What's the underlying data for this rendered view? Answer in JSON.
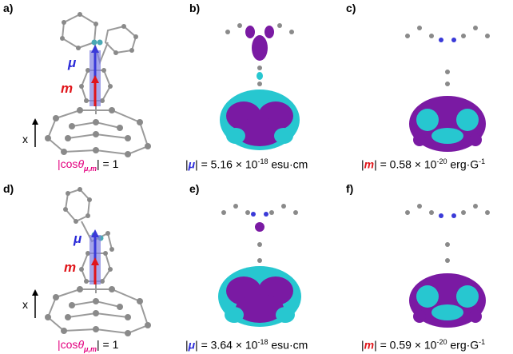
{
  "panels": [
    {
      "label": "a)"
    },
    {
      "label": "b)"
    },
    {
      "label": "c)"
    },
    {
      "label": "d)"
    },
    {
      "label": "e)"
    },
    {
      "label": "f)"
    }
  ],
  "vectors": {
    "mu": "μ",
    "m": "m"
  },
  "axis": {
    "label": "x"
  },
  "captions": {
    "row1": {
      "cos_prefix": "|cos",
      "cos_theta": "θ",
      "cos_sub": "μ,m",
      "cos_value": "| = 1",
      "mu_open": "|",
      "mu_symbol": "μ",
      "mu_value": "| = 5.16 × 10",
      "mu_exp": "-18",
      "mu_unit": " esu·cm",
      "m_open": "|",
      "m_symbol": "m",
      "m_value": "| = 0.58 × 10",
      "m_exp": "-20",
      "m_unit": " erg·G",
      "m_unit_exp": "-1"
    },
    "row2": {
      "cos_prefix": "|cos",
      "cos_theta": "θ",
      "cos_sub": "μ,m",
      "cos_value": "| = 1",
      "mu_open": "|",
      "mu_symbol": "μ",
      "mu_value": "| = 3.64 × 10",
      "mu_exp": "-18",
      "mu_unit": " esu·cm",
      "m_open": "|",
      "m_symbol": "m",
      "m_value": "| = 0.59 × 10",
      "m_exp": "-20",
      "m_unit": " erg·G",
      "m_unit_exp": "-1"
    }
  },
  "colors": {
    "orbital_purple": "#7a1aa3",
    "orbital_cyan": "#27c7d0",
    "atom_gray": "#8a8a8a",
    "nitrogen": "#4aa9b5",
    "mu_blue": "#2a2ad8",
    "m_red": "#e0151a",
    "magenta": "#e3007f"
  }
}
